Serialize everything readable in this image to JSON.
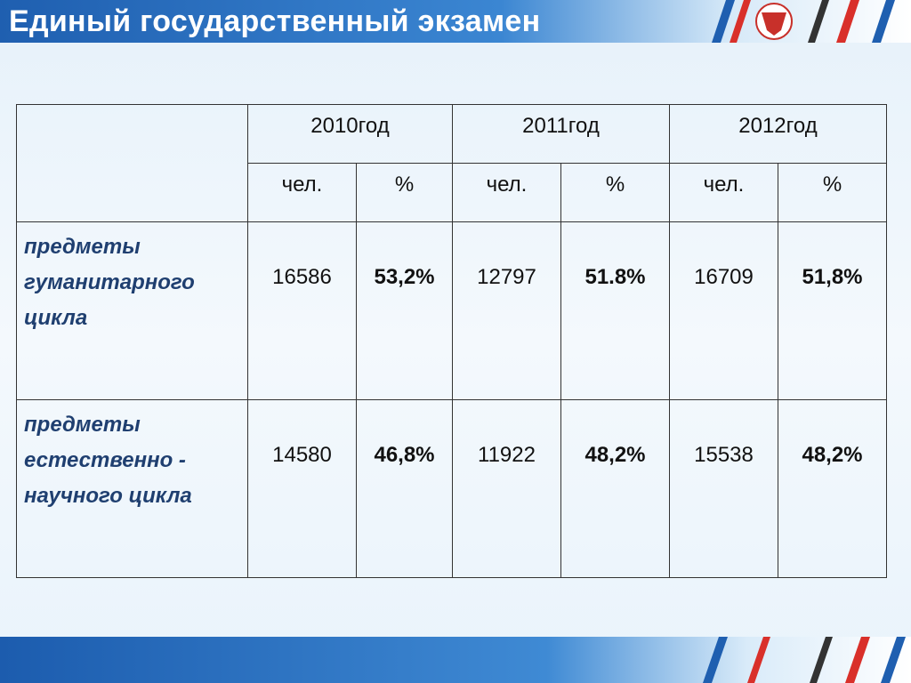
{
  "header": {
    "title": "Единый государственный экзамен"
  },
  "table": {
    "years": [
      "2010год",
      "2011год",
      "2012год"
    ],
    "subheaders": [
      "чел.",
      "%",
      "чел.",
      "%",
      "чел.",
      "%"
    ],
    "rows": [
      {
        "label": "предметы гуманитарного цикла",
        "cells": [
          "16586",
          "53,2%",
          "12797",
          "51.8%",
          "16709",
          "51,8%"
        ]
      },
      {
        "label": "предметы естественно - научного цикла",
        "cells": [
          "14580",
          "46,8%",
          "11922",
          "48,2%",
          "15538",
          "48,2%"
        ]
      }
    ]
  }
}
